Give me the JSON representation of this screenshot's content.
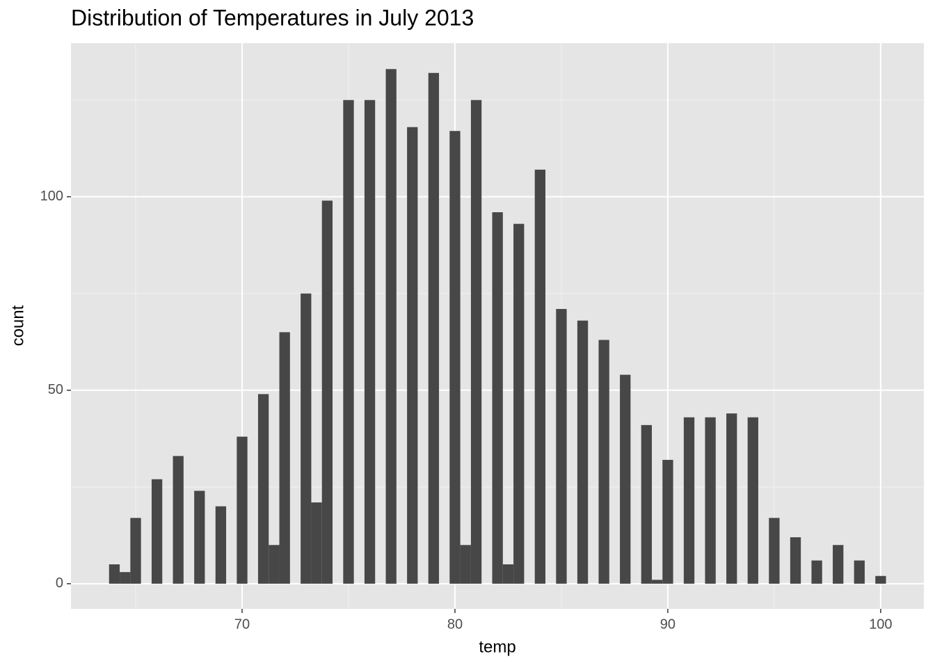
{
  "chart_data": {
    "type": "histogram",
    "title": "Distribution of Temperatures in July 2013",
    "x_label": "temp",
    "y_label": "count",
    "color": "#474747",
    "grid": true,
    "bins": [
      63.75,
      64.25,
      64.75,
      65.25,
      65.75,
      66.25,
      66.75,
      67.25,
      67.75,
      68.25,
      68.75,
      69.25,
      69.75,
      70.25,
      70.75,
      71.25,
      71.75,
      72.25,
      72.75,
      73.25,
      73.75,
      74.25,
      74.75,
      75.25,
      75.75,
      76.25,
      76.75,
      77.25,
      77.75,
      78.25,
      78.75,
      79.25,
      79.75,
      80.25,
      80.75,
      81.25,
      81.75,
      82.25,
      82.75,
      83.25,
      83.75,
      84.25,
      84.75,
      85.25,
      85.75,
      86.25,
      86.75,
      87.25,
      87.75,
      88.25,
      88.75,
      89.25,
      89.75,
      90.25,
      90.75,
      91.25,
      91.75,
      92.25,
      92.75,
      93.25,
      93.75,
      94.25,
      94.75,
      95.25,
      95.75,
      96.25,
      96.75,
      97.25,
      97.75,
      98.25,
      98.75,
      99.25,
      99.75,
      100.25
    ],
    "counts": [
      5,
      3,
      17,
      0,
      27,
      0,
      33,
      0,
      24,
      0,
      20,
      0,
      38,
      0,
      49,
      10,
      65,
      0,
      75,
      21,
      99,
      0,
      125,
      0,
      125,
      0,
      133,
      0,
      118,
      0,
      132,
      0,
      117,
      10,
      125,
      0,
      96,
      5,
      93,
      0,
      107,
      0,
      71,
      0,
      68,
      0,
      63,
      0,
      54,
      0,
      41,
      1,
      32,
      0,
      43,
      0,
      43,
      0,
      44,
      0,
      43,
      0,
      17,
      0,
      12,
      0,
      6,
      0,
      10,
      0,
      6,
      0,
      2
    ],
    "xlim": [
      61.96,
      102.03
    ],
    "ylim": [
      -6.5,
      139.7
    ],
    "xticks": [
      70,
      80,
      90,
      100
    ],
    "yticks": [
      0,
      50,
      100
    ],
    "x_minor_grid": [
      65,
      75,
      85,
      95
    ],
    "y_minor_grid": [
      25,
      75,
      125
    ]
  }
}
